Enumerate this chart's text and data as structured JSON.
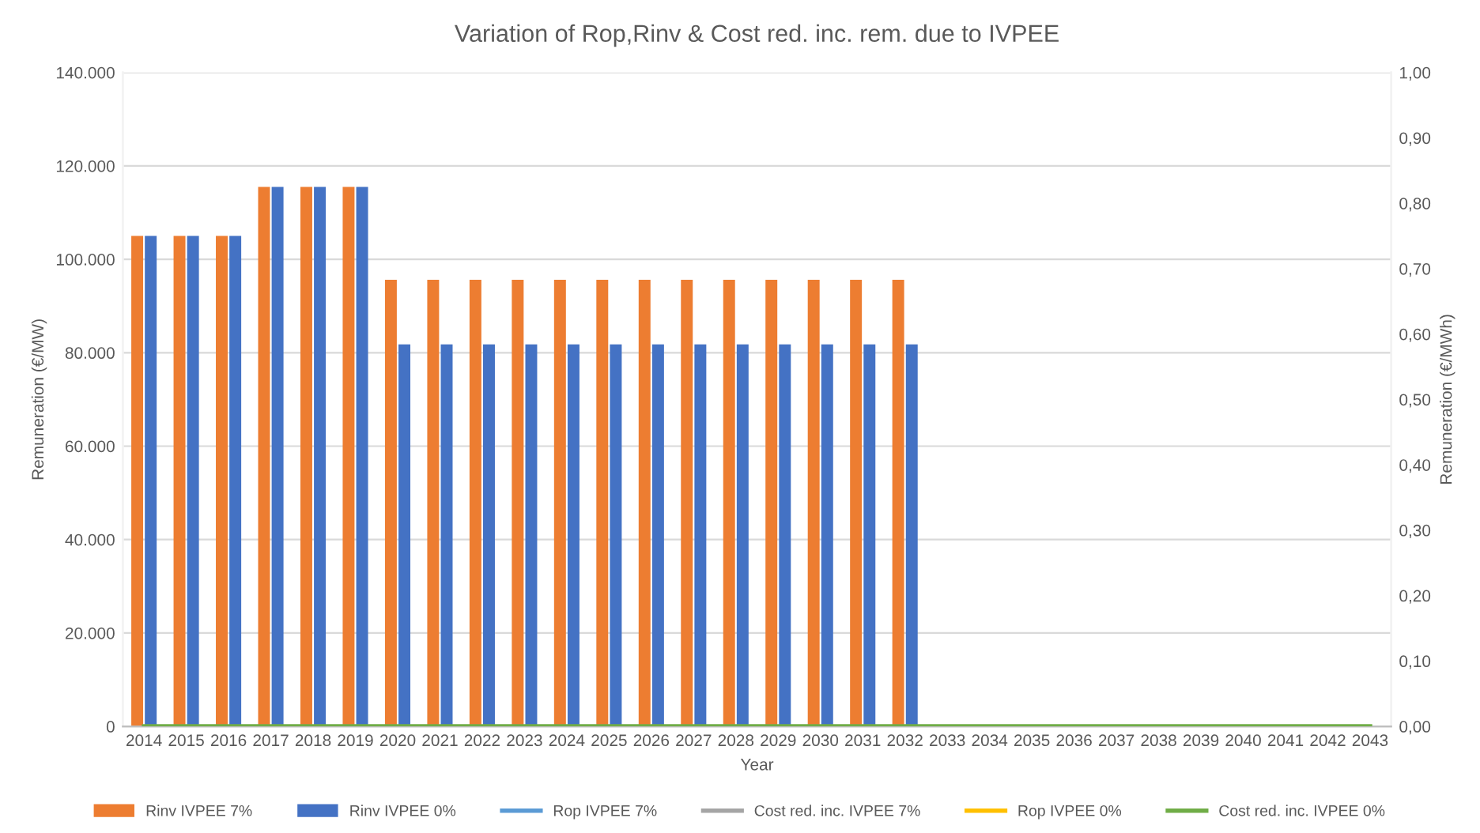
{
  "chart_data": {
    "type": "bar",
    "title": "Variation of Rop,Rinv & Cost red. inc. rem. due to IVPEE",
    "xlabel": "Year",
    "ylabel": "Remuneration (€/MW)",
    "y2label": "Remuneration (€/MWh)",
    "categories": [
      "2014",
      "2015",
      "2016",
      "2017",
      "2018",
      "2019",
      "2020",
      "2021",
      "2022",
      "2023",
      "2024",
      "2025",
      "2026",
      "2027",
      "2028",
      "2029",
      "2030",
      "2031",
      "2032",
      "2033",
      "2034",
      "2035",
      "2036",
      "2037",
      "2038",
      "2039",
      "2040",
      "2041",
      "2042",
      "2043"
    ],
    "series": [
      {
        "name": "Rinv IVPEE 7%",
        "color": "#ed7d31",
        "values": [
          105000,
          105000,
          105000,
          115500,
          115500,
          115500,
          95600,
          95600,
          95600,
          95600,
          95600,
          95600,
          95600,
          95600,
          95600,
          95600,
          95600,
          95600,
          95600,
          null,
          null,
          null,
          null,
          null,
          null,
          null,
          null,
          null,
          null,
          null
        ]
      },
      {
        "name": "Rinv IVPEE 0%",
        "color": "#4472c4",
        "values": [
          105000,
          105000,
          105000,
          115500,
          115500,
          115500,
          81800,
          81800,
          81800,
          81800,
          81800,
          81800,
          81800,
          81800,
          81800,
          81800,
          81800,
          81800,
          81800,
          null,
          null,
          null,
          null,
          null,
          null,
          null,
          null,
          null,
          null,
          null
        ]
      },
      {
        "name": "Rop IVPEE 7%",
        "type": "line",
        "axis": "y2",
        "color": "#5b9bd5",
        "values": [
          null,
          null,
          null,
          null,
          null,
          null,
          null,
          null,
          null,
          null,
          null,
          null,
          null,
          null,
          null,
          null,
          null,
          null,
          null,
          null,
          null,
          null,
          null,
          null,
          null,
          null,
          null,
          null,
          null,
          null
        ]
      },
      {
        "name": "Cost red. inc. IVPEE 7%",
        "type": "line",
        "axis": "y2",
        "color": "#a5a5a5",
        "values": [
          null,
          null,
          null,
          null,
          null,
          null,
          null,
          null,
          null,
          null,
          null,
          null,
          null,
          null,
          null,
          null,
          null,
          null,
          null,
          null,
          null,
          null,
          null,
          null,
          null,
          null,
          null,
          null,
          null,
          null
        ]
      },
      {
        "name": "Rop IVPEE 0%",
        "type": "line",
        "axis": "y2",
        "color": "#ffc000",
        "values": [
          null,
          null,
          null,
          null,
          null,
          null,
          null,
          null,
          null,
          null,
          null,
          null,
          null,
          null,
          null,
          null,
          null,
          null,
          null,
          null,
          null,
          null,
          null,
          null,
          null,
          null,
          null,
          null,
          null,
          null
        ]
      },
      {
        "name": "Cost red. inc. IVPEE 0%",
        "type": "line",
        "axis": "y2",
        "color": "#70ad47",
        "values": [
          0,
          0,
          0,
          0,
          0,
          0,
          0,
          0,
          0,
          0,
          0,
          0,
          0,
          0,
          0,
          0,
          0,
          0,
          0,
          0,
          0,
          0,
          0,
          0,
          0,
          0,
          0,
          0,
          0,
          0
        ]
      }
    ],
    "ylim": [
      0,
      140000
    ],
    "yticks": [
      {
        "value": 0,
        "label": "0"
      },
      {
        "value": 20000,
        "label": "20.000"
      },
      {
        "value": 40000,
        "label": "40.000"
      },
      {
        "value": 60000,
        "label": "60.000"
      },
      {
        "value": 80000,
        "label": "80.000"
      },
      {
        "value": 100000,
        "label": "100.000"
      },
      {
        "value": 120000,
        "label": "120.000"
      },
      {
        "value": 140000,
        "label": "140.000"
      }
    ],
    "y2lim": [
      0,
      1
    ],
    "y2ticks": [
      {
        "value": 0,
        "label": "0,00"
      },
      {
        "value": 0.1,
        "label": "0,10"
      },
      {
        "value": 0.2,
        "label": "0,20"
      },
      {
        "value": 0.3,
        "label": "0,30"
      },
      {
        "value": 0.4,
        "label": "0,40"
      },
      {
        "value": 0.5,
        "label": "0,50"
      },
      {
        "value": 0.6,
        "label": "0,60"
      },
      {
        "value": 0.7,
        "label": "0,70"
      },
      {
        "value": 0.8,
        "label": "0,80"
      },
      {
        "value": 0.9,
        "label": "0,90"
      },
      {
        "value": 1,
        "label": "1,00"
      }
    ],
    "grid": "y",
    "legend": "bottom"
  }
}
